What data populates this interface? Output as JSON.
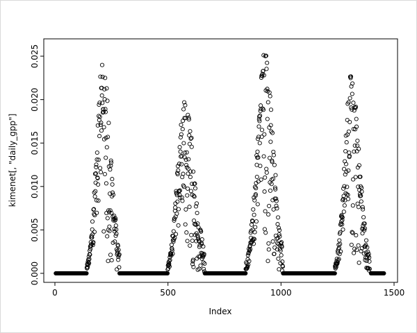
{
  "figure": {
    "background": "#ffffff",
    "border_color": "#d9d9d9"
  },
  "chart_data": {
    "type": "scatter",
    "title": "",
    "xlabel": "Index",
    "ylabel": "kimenet[, \"daily_gpp\"]",
    "xlim": [
      0,
      1500
    ],
    "ylim": [
      0,
      0.025
    ],
    "x_tick_values": [
      0,
      500,
      1000,
      1500
    ],
    "x_tick_labels": [
      "0",
      "500",
      "1000",
      "1500"
    ],
    "y_tick_values": [
      0,
      0.005,
      0.01,
      0.015,
      0.02,
      0.025
    ],
    "y_tick_labels": [
      "0.000",
      "0.005",
      "0.010",
      "0.015",
      "0.020",
      "0.025"
    ],
    "grid": false,
    "legend": null,
    "marker": "open-circle",
    "point_color": "#000000",
    "point_radius_px": 2.6,
    "n_points_approx": 1450,
    "seed": 42,
    "pattern_note": "Daily GPP time series over ~4 growing seasons: long runs of exact zeros on the baseline separated by four bell-shaped seasonal peaks with downward scatter.",
    "segments": [
      {
        "kind": "baseline",
        "x0": 4,
        "x1": 140,
        "value": 0
      },
      {
        "kind": "peak",
        "x0": 141,
        "x1": 285,
        "center": 213,
        "sigma_left": 28,
        "sigma_right": 33,
        "peak": 0.0255,
        "scatter_left": 0.55,
        "scatter_right": 0.95
      },
      {
        "kind": "baseline",
        "x0": 286,
        "x1": 498,
        "value": 0
      },
      {
        "kind": "peak",
        "x0": 499,
        "x1": 662,
        "center": 572,
        "sigma_left": 30,
        "sigma_right": 44,
        "peak": 0.0205,
        "scatter_left": 0.6,
        "scatter_right": 0.95
      },
      {
        "kind": "baseline",
        "x0": 663,
        "x1": 843,
        "value": 0
      },
      {
        "kind": "peak",
        "x0": 844,
        "x1": 1008,
        "center": 928,
        "sigma_left": 34,
        "sigma_right": 38,
        "peak": 0.0255,
        "scatter_left": 0.65,
        "scatter_right": 0.95
      },
      {
        "kind": "baseline",
        "x0": 1009,
        "x1": 1238,
        "value": 0
      },
      {
        "kind": "peak",
        "x0": 1239,
        "x1": 1392,
        "center": 1310,
        "sigma_left": 28,
        "sigma_right": 36,
        "peak": 0.0245,
        "scatter_left": 0.6,
        "scatter_right": 0.95
      },
      {
        "kind": "baseline",
        "x0": 1398,
        "x1": 1455,
        "value": 0
      }
    ]
  }
}
